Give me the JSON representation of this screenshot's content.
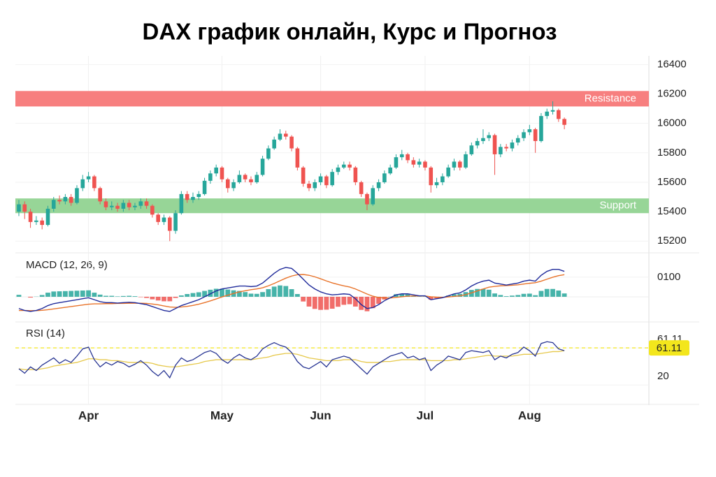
{
  "chart_data": [
    {
      "type": "candlestick",
      "title": "DAX график онлайн, Курс и Прогноз",
      "open": [
        15400,
        15450,
        15400,
        15330,
        15340,
        15310,
        15420,
        15480,
        15470,
        15500,
        15460,
        15560,
        15620,
        15640,
        15560,
        15470,
        15430,
        15440,
        15420,
        15460,
        15430,
        15440,
        15470,
        15440,
        15380,
        15330,
        15360,
        15270,
        15390,
        15520,
        15480,
        15500,
        15520,
        15610,
        15660,
        15700,
        15620,
        15560,
        15600,
        15650,
        15620,
        15600,
        15650,
        15760,
        15830,
        15890,
        15930,
        15910,
        15830,
        15700,
        15590,
        15560,
        15600,
        15640,
        15580,
        15670,
        15700,
        15720,
        15700,
        15600,
        15520,
        15450,
        15560,
        15600,
        15660,
        15700,
        15770,
        15790,
        15750,
        15720,
        15740,
        15700,
        15580,
        15600,
        15640,
        15700,
        15740,
        15700,
        15790,
        15850,
        15880,
        15900,
        15920,
        15790,
        15840,
        15830,
        15870,
        15900,
        15940,
        15960,
        15880,
        16050,
        16080,
        16090,
        16030
      ],
      "high": [
        15480,
        15470,
        15420,
        15370,
        15360,
        15440,
        15500,
        15510,
        15520,
        15520,
        15580,
        15650,
        15670,
        15650,
        15570,
        15490,
        15470,
        15460,
        15480,
        15480,
        15460,
        15490,
        15490,
        15450,
        15390,
        15380,
        15370,
        15410,
        15540,
        15540,
        15530,
        15540,
        15630,
        15680,
        15720,
        15710,
        15630,
        15620,
        15680,
        15660,
        15640,
        15670,
        15780,
        15850,
        15910,
        15960,
        15950,
        15920,
        15840,
        15710,
        15610,
        15620,
        15660,
        15650,
        15690,
        15720,
        15740,
        15740,
        15710,
        15610,
        15530,
        15580,
        15620,
        15680,
        15720,
        15790,
        15820,
        15800,
        15770,
        15760,
        15750,
        15710,
        15630,
        15660,
        15720,
        15760,
        15750,
        15810,
        15870,
        15900,
        15960,
        15940,
        15930,
        15860,
        15860,
        15890,
        15920,
        15960,
        15990,
        15970,
        16070,
        16100,
        16150,
        16100,
        16040
      ],
      "low": [
        15370,
        15350,
        15290,
        15310,
        15280,
        15300,
        15400,
        15450,
        15450,
        15440,
        15450,
        15540,
        15600,
        15540,
        15450,
        15410,
        15410,
        15400,
        15400,
        15410,
        15410,
        15420,
        15420,
        15360,
        15310,
        15310,
        15200,
        15250,
        15380,
        15460,
        15460,
        15480,
        15510,
        15590,
        15640,
        15600,
        15530,
        15540,
        15590,
        15600,
        15580,
        15590,
        15640,
        15750,
        15820,
        15880,
        15890,
        15810,
        15680,
        15570,
        15540,
        15540,
        15580,
        15560,
        15570,
        15650,
        15690,
        15680,
        15580,
        15500,
        15410,
        15440,
        15540,
        15590,
        15650,
        15690,
        15750,
        15730,
        15700,
        15700,
        15680,
        15530,
        15560,
        15580,
        15630,
        15680,
        15680,
        15690,
        15780,
        15830,
        15860,
        15880,
        15650,
        15770,
        15810,
        15810,
        15850,
        15880,
        15920,
        15800,
        15870,
        16030,
        16060,
        16010,
        15960
      ],
      "close": [
        15450,
        15400,
        15330,
        15340,
        15310,
        15420,
        15480,
        15470,
        15500,
        15460,
        15560,
        15620,
        15640,
        15560,
        15470,
        15430,
        15440,
        15420,
        15460,
        15430,
        15440,
        15470,
        15440,
        15380,
        15330,
        15360,
        15270,
        15390,
        15520,
        15480,
        15500,
        15520,
        15610,
        15660,
        15700,
        15620,
        15560,
        15600,
        15650,
        15620,
        15600,
        15650,
        15760,
        15830,
        15890,
        15930,
        15910,
        15830,
        15700,
        15590,
        15560,
        15600,
        15640,
        15580,
        15670,
        15700,
        15720,
        15700,
        15600,
        15520,
        15450,
        15560,
        15600,
        15660,
        15700,
        15770,
        15790,
        15750,
        15720,
        15740,
        15700,
        15580,
        15600,
        15640,
        15700,
        15740,
        15700,
        15790,
        15850,
        15880,
        15900,
        15920,
        15790,
        15840,
        15830,
        15870,
        15900,
        15940,
        15960,
        15880,
        16050,
        16080,
        16090,
        16030,
        15990
      ],
      "up_color": "#26a69a",
      "down_color": "#ef5350",
      "xlim": [
        -0.6,
        108.2
      ],
      "xticks": [
        {
          "value": 12,
          "label": "Apr"
        },
        {
          "value": 35,
          "label": "May"
        },
        {
          "value": 52,
          "label": "Jun"
        },
        {
          "value": 70,
          "label": "Jul"
        },
        {
          "value": 88,
          "label": "Aug"
        }
      ],
      "ylim": [
        15130,
        16435
      ],
      "yticks": [
        15200,
        15400,
        15600,
        15800,
        16000,
        16200,
        16400
      ],
      "grid": true,
      "bands": [
        {
          "label": "Resistance",
          "from": 16115,
          "to": 16220,
          "color": "#f77f7f"
        },
        {
          "label": "Support",
          "from": 15390,
          "to": 15490,
          "color": "#97d597"
        }
      ]
    },
    {
      "type": "macd",
      "label": "MACD (12, 26, 9)",
      "macd": {
        "color": "#1f2a9a",
        "values": [
          -60,
          -70,
          -75,
          -70,
          -60,
          -45,
          -35,
          -30,
          -25,
          -20,
          -15,
          -10,
          -5,
          -15,
          -25,
          -30,
          -30,
          -32,
          -30,
          -28,
          -30,
          -35,
          -40,
          -50,
          -60,
          -70,
          -75,
          -60,
          -45,
          -35,
          -25,
          -15,
          0,
          15,
          30,
          40,
          45,
          50,
          55,
          55,
          52,
          55,
          70,
          95,
          120,
          140,
          150,
          145,
          120,
          90,
          60,
          40,
          25,
          15,
          10,
          12,
          15,
          12,
          -10,
          -40,
          -60,
          -55,
          -40,
          -20,
          -5,
          10,
          15,
          15,
          10,
          5,
          5,
          -15,
          -10,
          -5,
          5,
          15,
          20,
          35,
          55,
          70,
          80,
          85,
          70,
          65,
          60,
          65,
          70,
          80,
          85,
          80,
          110,
          130,
          140,
          140,
          130
        ]
      },
      "signal": {
        "color": "#e8732a",
        "values": [
          -70,
          -70,
          -71,
          -71,
          -69,
          -66,
          -62,
          -58,
          -54,
          -50,
          -46,
          -42,
          -38,
          -36,
          -36,
          -35,
          -35,
          -34,
          -34,
          -33,
          -33,
          -33,
          -34,
          -37,
          -41,
          -47,
          -52,
          -54,
          -52,
          -49,
          -44,
          -38,
          -30,
          -21,
          -11,
          -1,
          8,
          17,
          25,
          31,
          36,
          40,
          46,
          56,
          68,
          82,
          95,
          106,
          113,
          114,
          110,
          102,
          92,
          81,
          71,
          63,
          56,
          50,
          40,
          27,
          14,
          3,
          -4,
          -6,
          -6,
          -3,
          0,
          3,
          4,
          4,
          4,
          0,
          -2,
          -3,
          -1,
          2,
          5,
          11,
          20,
          30,
          40,
          49,
          53,
          56,
          57,
          59,
          61,
          65,
          69,
          72,
          80,
          90,
          100,
          108,
          113
        ]
      },
      "histogram": {
        "up_color": "#26a69a",
        "down_color": "#ef5350",
        "values": [
          10,
          0,
          -4,
          1,
          9,
          21,
          27,
          28,
          29,
          30,
          31,
          32,
          33,
          21,
          11,
          5,
          5,
          2,
          4,
          5,
          3,
          -2,
          -6,
          -13,
          -19,
          -23,
          -23,
          -6,
          7,
          14,
          19,
          23,
          30,
          36,
          41,
          41,
          37,
          33,
          30,
          24,
          16,
          15,
          24,
          39,
          52,
          58,
          55,
          39,
          14,
          -24,
          -50,
          -62,
          -67,
          -66,
          -61,
          -51,
          -41,
          -38,
          -50,
          -67,
          -74,
          -58,
          -36,
          -14,
          1,
          13,
          15,
          12,
          6,
          1,
          1,
          -15,
          -8,
          -2,
          6,
          13,
          15,
          24,
          35,
          40,
          40,
          36,
          17,
          9,
          3,
          6,
          9,
          15,
          16,
          8,
          30,
          40,
          40,
          32,
          17
        ]
      },
      "ylim": [
        -118,
        214
      ],
      "yticks": [
        {
          "value": 100,
          "label": "0100"
        }
      ]
    },
    {
      "type": "rsi",
      "label": "RSI (14)",
      "rsi": {
        "color": "#283593",
        "values": [
          38,
          33,
          40,
          36,
          42,
          46,
          50,
          44,
          48,
          45,
          52,
          60,
          62,
          48,
          40,
          45,
          42,
          46,
          44,
          40,
          43,
          47,
          42,
          35,
          30,
          36,
          28,
          42,
          50,
          46,
          48,
          52,
          56,
          58,
          55,
          48,
          44,
          50,
          54,
          50,
          48,
          52,
          60,
          64,
          67,
          64,
          62,
          56,
          46,
          40,
          38,
          42,
          46,
          40,
          48,
          50,
          52,
          50,
          44,
          38,
          32,
          40,
          44,
          48,
          52,
          54,
          56,
          50,
          52,
          48,
          50,
          36,
          42,
          46,
          52,
          50,
          48,
          56,
          58,
          57,
          56,
          58,
          48,
          52,
          50,
          54,
          56,
          62,
          58,
          52,
          66,
          68,
          67,
          60,
          58
        ]
      },
      "ma": {
        "color": "#e6c84a",
        "values": [
          38,
          37,
          37,
          37,
          38,
          39,
          41,
          42,
          43,
          44,
          45,
          47,
          49,
          49,
          48,
          48,
          47,
          47,
          46,
          45,
          45,
          45,
          45,
          44,
          42,
          41,
          40,
          40,
          41,
          42,
          43,
          44,
          46,
          47,
          48,
          48,
          48,
          48,
          48,
          48,
          48,
          49,
          50,
          51,
          53,
          54,
          55,
          55,
          54,
          52,
          50,
          49,
          48,
          47,
          47,
          47,
          48,
          48,
          48,
          46,
          45,
          45,
          45,
          46,
          46,
          47,
          48,
          48,
          48,
          48,
          48,
          47,
          47,
          47,
          47,
          48,
          48,
          49,
          50,
          51,
          52,
          53,
          52,
          52,
          52,
          52,
          53,
          54,
          54,
          54,
          55,
          56,
          57,
          57,
          58
        ]
      },
      "level": 61.11,
      "level_color": "#f3e61c",
      "ylim": [
        0,
        86.8
      ],
      "yticks": [
        61.11,
        20
      ]
    }
  ]
}
